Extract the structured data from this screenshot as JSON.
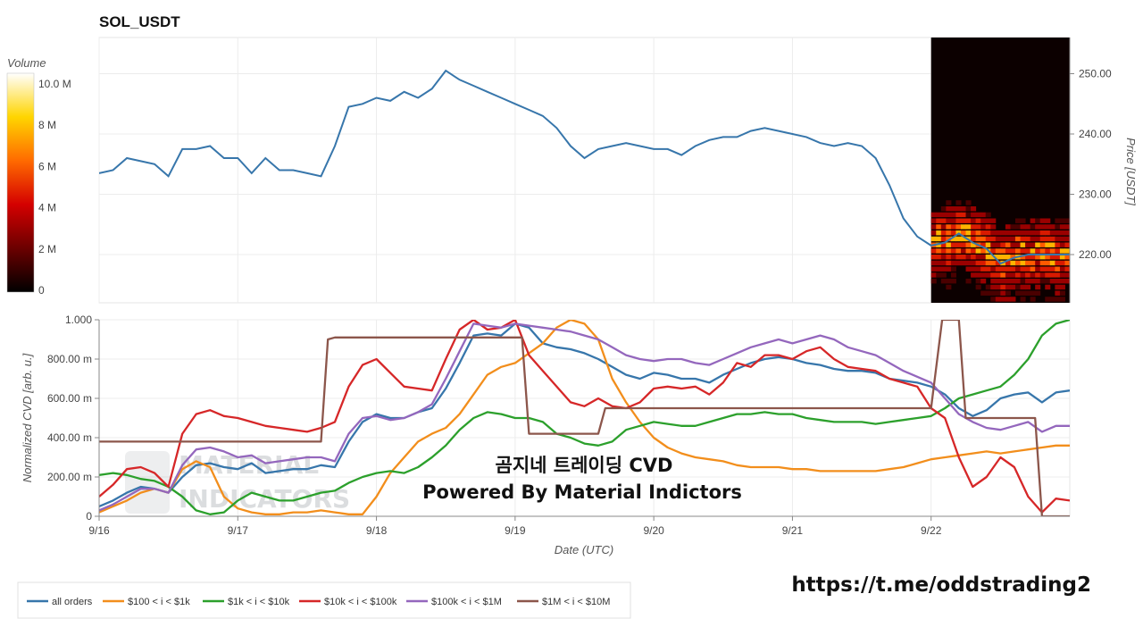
{
  "chart_data": [
    {
      "type": "line",
      "title": "SOL_USDT",
      "ylabel": "Price [USDT]",
      "ylim": [
        212,
        256
      ],
      "yticks": [
        220,
        230,
        240,
        250
      ],
      "ytick_labels": [
        "220.00",
        "230.00",
        "240.00",
        "250.00"
      ],
      "xlim": [
        0,
        7
      ],
      "series": [
        {
          "color": "#3776ab",
          "x": [
            0,
            0.1,
            0.2,
            0.3,
            0.4,
            0.5,
            0.6,
            0.7,
            0.8,
            0.9,
            1.0,
            1.1,
            1.2,
            1.3,
            1.4,
            1.5,
            1.6,
            1.7,
            1.8,
            1.9,
            2.0,
            2.1,
            2.2,
            2.3,
            2.4,
            2.5,
            2.6,
            2.7,
            2.8,
            2.9,
            3.0,
            3.1,
            3.2,
            3.3,
            3.4,
            3.5,
            3.6,
            3.7,
            3.8,
            3.9,
            4.0,
            4.1,
            4.2,
            4.3,
            4.4,
            4.5,
            4.6,
            4.7,
            4.8,
            4.9,
            5.0,
            5.1,
            5.2,
            5.3,
            5.4,
            5.5,
            5.6,
            5.7,
            5.8,
            5.9,
            6.0,
            6.1,
            6.2,
            6.3,
            6.4,
            6.5,
            6.6,
            6.7,
            6.8,
            6.9,
            7.0
          ],
          "y": [
            233.5,
            234,
            236,
            235.5,
            235,
            233,
            237.5,
            237.5,
            238,
            236,
            236,
            233.5,
            236,
            234,
            234,
            233.5,
            233,
            238,
            244.5,
            245,
            246,
            245.5,
            247,
            246,
            247.5,
            250.5,
            249,
            248,
            247,
            246,
            245,
            244,
            243,
            241,
            238,
            236,
            237.5,
            238,
            238.5,
            238,
            237.5,
            237.5,
            236.5,
            238,
            239,
            239.5,
            239.5,
            240.5,
            241,
            240.5,
            240,
            239.5,
            238.5,
            238,
            238.5,
            238,
            236,
            231.5,
            226,
            223,
            221.5,
            222,
            223.5,
            222,
            221,
            218.5,
            219.5,
            220,
            220,
            220,
            220
          ]
        }
      ],
      "heatmap": {
        "colorbar_title": "Volume",
        "colorbar_ticks": [
          "0",
          "2 M",
          "4 M",
          "6 M",
          "8 M",
          "10.0 M"
        ],
        "colorbar_values": [
          0,
          2,
          4,
          6,
          8,
          10
        ],
        "x_start": 6.0,
        "x_end": 7.0
      }
    },
    {
      "type": "line",
      "ylabel": "Normalized CVD [arb. u.]",
      "xlabel": "Date (UTC)",
      "ylim": [
        0,
        1.0
      ],
      "yticks": [
        0,
        0.2,
        0.4,
        0.6,
        0.8,
        1.0
      ],
      "ytick_labels": [
        "0",
        "200.00 m",
        "400.00 m",
        "600.00 m",
        "800.00 m",
        "1.000"
      ],
      "xlim": [
        0,
        7
      ],
      "xticks": [
        0,
        1,
        2,
        3,
        4,
        5,
        6
      ],
      "xtick_labels": [
        "9/16",
        "9/17",
        "9/18",
        "9/19",
        "9/20",
        "9/21",
        "9/22"
      ],
      "legend_position": "bottom-left",
      "series": [
        {
          "name": "all orders",
          "color": "#3776ab",
          "x": [
            0,
            0.1,
            0.2,
            0.3,
            0.4,
            0.5,
            0.6,
            0.7,
            0.8,
            0.9,
            1.0,
            1.1,
            1.2,
            1.3,
            1.4,
            1.5,
            1.6,
            1.7,
            1.8,
            1.9,
            2.0,
            2.1,
            2.2,
            2.3,
            2.4,
            2.5,
            2.6,
            2.7,
            2.8,
            2.9,
            3.0,
            3.1,
            3.2,
            3.3,
            3.4,
            3.5,
            3.6,
            3.7,
            3.8,
            3.9,
            4.0,
            4.1,
            4.2,
            4.3,
            4.4,
            4.5,
            4.6,
            4.7,
            4.8,
            4.9,
            5.0,
            5.1,
            5.2,
            5.3,
            5.4,
            5.5,
            5.6,
            5.7,
            5.8,
            5.9,
            6.0,
            6.1,
            6.2,
            6.3,
            6.4,
            6.5,
            6.6,
            6.7,
            6.8,
            6.9,
            7.0
          ],
          "y": [
            0.05,
            0.08,
            0.12,
            0.15,
            0.14,
            0.12,
            0.2,
            0.26,
            0.27,
            0.25,
            0.24,
            0.27,
            0.22,
            0.23,
            0.24,
            0.24,
            0.26,
            0.25,
            0.38,
            0.48,
            0.52,
            0.5,
            0.5,
            0.53,
            0.55,
            0.65,
            0.78,
            0.92,
            0.93,
            0.92,
            0.98,
            0.96,
            0.88,
            0.86,
            0.85,
            0.83,
            0.8,
            0.76,
            0.72,
            0.7,
            0.73,
            0.72,
            0.7,
            0.7,
            0.68,
            0.72,
            0.75,
            0.78,
            0.8,
            0.81,
            0.8,
            0.78,
            0.77,
            0.75,
            0.74,
            0.74,
            0.73,
            0.7,
            0.69,
            0.68,
            0.66,
            0.62,
            0.55,
            0.51,
            0.54,
            0.6,
            0.62,
            0.63,
            0.58,
            0.63,
            0.64
          ]
        },
        {
          "name": "$100 < i < $1k",
          "color": "#f28e1c",
          "x": [
            0,
            0.1,
            0.2,
            0.3,
            0.4,
            0.5,
            0.6,
            0.7,
            0.8,
            0.9,
            1.0,
            1.1,
            1.2,
            1.3,
            1.4,
            1.5,
            1.6,
            1.7,
            1.8,
            1.9,
            2.0,
            2.1,
            2.2,
            2.3,
            2.4,
            2.5,
            2.6,
            2.7,
            2.8,
            2.9,
            3.0,
            3.1,
            3.2,
            3.3,
            3.4,
            3.5,
            3.6,
            3.7,
            3.8,
            3.9,
            4.0,
            4.1,
            4.2,
            4.3,
            4.4,
            4.5,
            4.6,
            4.7,
            4.8,
            4.9,
            5.0,
            5.1,
            5.2,
            5.3,
            5.4,
            5.5,
            5.6,
            5.7,
            5.8,
            5.9,
            6.0,
            6.1,
            6.2,
            6.3,
            6.4,
            6.5,
            6.6,
            6.7,
            6.8,
            6.9,
            7.0
          ],
          "y": [
            0.02,
            0.05,
            0.08,
            0.12,
            0.14,
            0.12,
            0.24,
            0.28,
            0.25,
            0.1,
            0.04,
            0.02,
            0.01,
            0.01,
            0.02,
            0.02,
            0.03,
            0.02,
            0.01,
            0.01,
            0.1,
            0.22,
            0.3,
            0.38,
            0.42,
            0.45,
            0.52,
            0.62,
            0.72,
            0.76,
            0.78,
            0.83,
            0.88,
            0.96,
            1.0,
            0.98,
            0.9,
            0.7,
            0.58,
            0.48,
            0.4,
            0.35,
            0.32,
            0.3,
            0.29,
            0.28,
            0.26,
            0.25,
            0.25,
            0.25,
            0.24,
            0.24,
            0.23,
            0.23,
            0.23,
            0.23,
            0.23,
            0.24,
            0.25,
            0.27,
            0.29,
            0.3,
            0.31,
            0.32,
            0.33,
            0.32,
            0.33,
            0.34,
            0.35,
            0.36,
            0.36
          ]
        },
        {
          "name": "$1k < i < $10k",
          "color": "#2ca02c",
          "x": [
            0,
            0.1,
            0.2,
            0.3,
            0.4,
            0.5,
            0.6,
            0.7,
            0.8,
            0.9,
            1.0,
            1.1,
            1.2,
            1.3,
            1.4,
            1.5,
            1.6,
            1.7,
            1.8,
            1.9,
            2.0,
            2.1,
            2.2,
            2.3,
            2.4,
            2.5,
            2.6,
            2.7,
            2.8,
            2.9,
            3.0,
            3.1,
            3.2,
            3.3,
            3.4,
            3.5,
            3.6,
            3.7,
            3.8,
            3.9,
            4.0,
            4.1,
            4.2,
            4.3,
            4.4,
            4.5,
            4.6,
            4.7,
            4.8,
            4.9,
            5.0,
            5.1,
            5.2,
            5.3,
            5.4,
            5.5,
            5.6,
            5.7,
            5.8,
            5.9,
            6.0,
            6.1,
            6.2,
            6.3,
            6.4,
            6.5,
            6.6,
            6.7,
            6.8,
            6.9,
            7.0
          ],
          "y": [
            0.21,
            0.22,
            0.21,
            0.19,
            0.18,
            0.15,
            0.1,
            0.03,
            0.01,
            0.02,
            0.08,
            0.12,
            0.1,
            0.08,
            0.08,
            0.1,
            0.12,
            0.13,
            0.17,
            0.2,
            0.22,
            0.23,
            0.22,
            0.25,
            0.3,
            0.36,
            0.44,
            0.5,
            0.53,
            0.52,
            0.5,
            0.5,
            0.48,
            0.42,
            0.4,
            0.37,
            0.36,
            0.38,
            0.44,
            0.46,
            0.48,
            0.47,
            0.46,
            0.46,
            0.48,
            0.5,
            0.52,
            0.52,
            0.53,
            0.52,
            0.52,
            0.5,
            0.49,
            0.48,
            0.48,
            0.48,
            0.47,
            0.48,
            0.49,
            0.5,
            0.51,
            0.55,
            0.6,
            0.62,
            0.64,
            0.66,
            0.72,
            0.8,
            0.92,
            0.98,
            1.0
          ]
        },
        {
          "name": "$10k < i < $100k",
          "color": "#d62728",
          "x": [
            0,
            0.1,
            0.2,
            0.3,
            0.4,
            0.5,
            0.6,
            0.7,
            0.8,
            0.9,
            1.0,
            1.1,
            1.2,
            1.3,
            1.4,
            1.5,
            1.6,
            1.7,
            1.8,
            1.9,
            2.0,
            2.1,
            2.2,
            2.3,
            2.4,
            2.5,
            2.6,
            2.7,
            2.8,
            2.9,
            3.0,
            3.1,
            3.2,
            3.3,
            3.4,
            3.5,
            3.6,
            3.7,
            3.8,
            3.9,
            4.0,
            4.1,
            4.2,
            4.3,
            4.4,
            4.5,
            4.6,
            4.7,
            4.8,
            4.9,
            5.0,
            5.1,
            5.2,
            5.3,
            5.4,
            5.5,
            5.6,
            5.7,
            5.8,
            5.9,
            6.0,
            6.1,
            6.2,
            6.3,
            6.4,
            6.5,
            6.6,
            6.7,
            6.8,
            6.9,
            7.0
          ],
          "y": [
            0.1,
            0.16,
            0.24,
            0.25,
            0.22,
            0.15,
            0.42,
            0.52,
            0.54,
            0.51,
            0.5,
            0.48,
            0.46,
            0.45,
            0.44,
            0.43,
            0.45,
            0.48,
            0.66,
            0.77,
            0.8,
            0.73,
            0.66,
            0.65,
            0.64,
            0.8,
            0.95,
            1.0,
            0.95,
            0.96,
            1.0,
            0.82,
            0.74,
            0.66,
            0.58,
            0.56,
            0.6,
            0.56,
            0.55,
            0.58,
            0.65,
            0.66,
            0.65,
            0.66,
            0.62,
            0.68,
            0.78,
            0.76,
            0.82,
            0.82,
            0.8,
            0.84,
            0.86,
            0.8,
            0.76,
            0.75,
            0.74,
            0.7,
            0.68,
            0.66,
            0.55,
            0.5,
            0.3,
            0.15,
            0.2,
            0.3,
            0.25,
            0.1,
            0.02,
            0.09,
            0.08
          ]
        },
        {
          "name": "$100k < i < $1M",
          "color": "#9467bd",
          "x": [
            0,
            0.1,
            0.2,
            0.3,
            0.4,
            0.5,
            0.6,
            0.7,
            0.8,
            0.9,
            1.0,
            1.1,
            1.2,
            1.3,
            1.4,
            1.5,
            1.6,
            1.7,
            1.8,
            1.9,
            2.0,
            2.1,
            2.2,
            2.3,
            2.4,
            2.5,
            2.6,
            2.7,
            2.8,
            2.9,
            3.0,
            3.1,
            3.2,
            3.3,
            3.4,
            3.5,
            3.6,
            3.7,
            3.8,
            3.9,
            4.0,
            4.1,
            4.2,
            4.3,
            4.4,
            4.5,
            4.6,
            4.7,
            4.8,
            4.9,
            5.0,
            5.1,
            5.2,
            5.3,
            5.4,
            5.5,
            5.6,
            5.7,
            5.8,
            5.9,
            6.0,
            6.1,
            6.2,
            6.3,
            6.4,
            6.5,
            6.6,
            6.7,
            6.8,
            6.9,
            7.0
          ],
          "y": [
            0.03,
            0.06,
            0.1,
            0.14,
            0.14,
            0.12,
            0.26,
            0.34,
            0.35,
            0.33,
            0.3,
            0.31,
            0.27,
            0.28,
            0.29,
            0.3,
            0.3,
            0.28,
            0.42,
            0.5,
            0.51,
            0.49,
            0.5,
            0.53,
            0.57,
            0.7,
            0.84,
            0.98,
            0.97,
            0.96,
            0.98,
            0.97,
            0.96,
            0.95,
            0.94,
            0.92,
            0.9,
            0.86,
            0.82,
            0.8,
            0.79,
            0.8,
            0.8,
            0.78,
            0.77,
            0.8,
            0.83,
            0.86,
            0.88,
            0.9,
            0.88,
            0.9,
            0.92,
            0.9,
            0.86,
            0.84,
            0.82,
            0.78,
            0.74,
            0.71,
            0.68,
            0.6,
            0.52,
            0.48,
            0.45,
            0.44,
            0.46,
            0.48,
            0.43,
            0.46,
            0.46
          ]
        },
        {
          "name": "$1M < i < $10M",
          "color": "#8c564b",
          "x": [
            0,
            1.6,
            1.65,
            1.7,
            2.6,
            2.75,
            3.05,
            3.1,
            3.6,
            3.65,
            4.2,
            5.0,
            5.6,
            5.7,
            6.0,
            6.08,
            6.2,
            6.25,
            6.3,
            6.75,
            6.8,
            7.0
          ],
          "y": [
            0.38,
            0.38,
            0.9,
            0.91,
            0.91,
            0.91,
            0.91,
            0.42,
            0.42,
            0.55,
            0.55,
            0.55,
            0.55,
            0.55,
            0.55,
            1.0,
            1.0,
            0.5,
            0.5,
            0.5,
            0.0,
            0.0
          ]
        }
      ]
    }
  ],
  "overlay": {
    "title": "곰지네 트레이딩 CVD",
    "subtitle": "Powered By Material Indictors"
  },
  "credit": "https://t.me/oddstrading2",
  "watermark": [
    "MATERIAL",
    "INDICATORS"
  ]
}
